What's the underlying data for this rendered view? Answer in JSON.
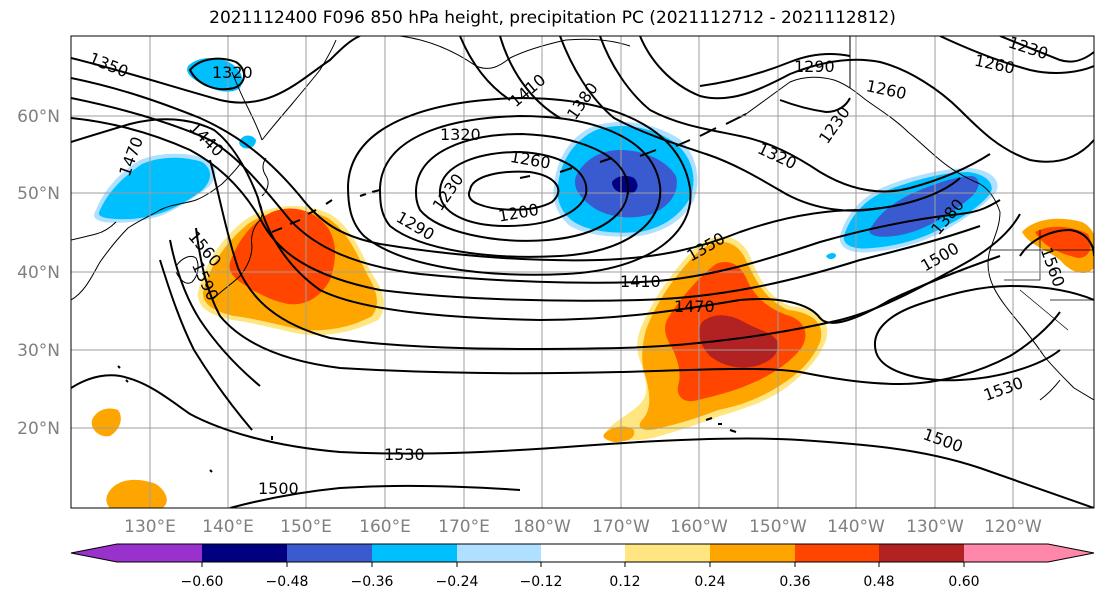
{
  "title": "2021112400 F096 850 hPa height, precipitation PC (2021112712 - 2021112812)",
  "lat_labels": [
    "60°N",
    "50°N",
    "40°N",
    "30°N",
    "20°N"
  ],
  "lon_labels": [
    "130°E",
    "140°E",
    "150°E",
    "160°E",
    "170°E",
    "180°W",
    "170°W",
    "160°W",
    "150°W",
    "140°W",
    "130°W",
    "120°W"
  ],
  "contour_labels": [
    "1350",
    "1320",
    "1410",
    "1380",
    "1290",
    "1260",
    "1230",
    "1230",
    "1260",
    "1470",
    "1440",
    "1320",
    "1260",
    "1230",
    "1200",
    "1290",
    "1320",
    "1350",
    "1380",
    "1500",
    "1560",
    "1560",
    "1590",
    "1410",
    "1470",
    "1530",
    "1530",
    "1500",
    "1500"
  ],
  "colorbar": {
    "ticks": [
      "−0.60",
      "−0.48",
      "−0.36",
      "−0.24",
      "−0.12",
      "0.12",
      "0.24",
      "0.36",
      "0.48",
      "0.60"
    ],
    "colors": [
      "#9932cc",
      "#000080",
      "#3a5bcf",
      "#00bfff",
      "#b0e0ff",
      "#ffffff",
      "#ffe680",
      "#ffa500",
      "#ff4500",
      "#b22222",
      "#ff88aa"
    ]
  },
  "colors": {
    "pos_low": "#ffe680",
    "pos_mid": "#ffa500",
    "pos_high": "#ff4500",
    "pos_top": "#b22222",
    "neg_low": "#b0e0ff",
    "neg_mid": "#00bfff",
    "neg_high": "#3a5bcf",
    "neg_top": "#000080"
  }
}
